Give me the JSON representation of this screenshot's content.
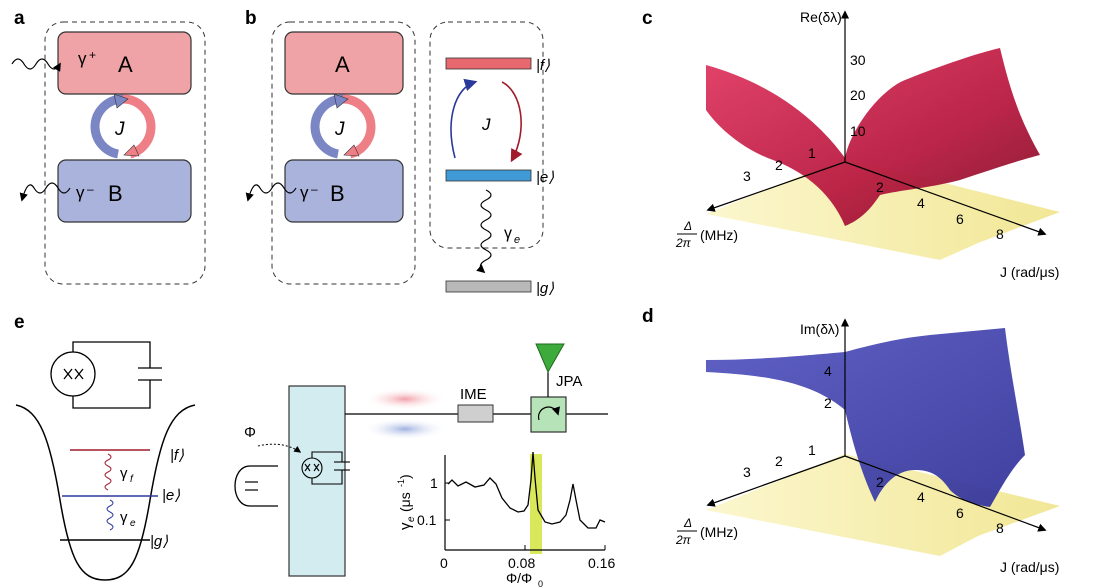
{
  "panels": {
    "a": {
      "letter": "a",
      "gamma_plus": "γ",
      "plus_sign": "+",
      "mode_a": "A",
      "coupling": "J",
      "gamma_minus": "γ",
      "minus_sign": "–",
      "mode_b": "B"
    },
    "b": {
      "letter": "b",
      "mode_a": "A",
      "coupling": "J",
      "gamma_minus": "γ",
      "minus_sign": "–",
      "mode_b": "B",
      "level_f": "|f⟩",
      "level_e": "|e⟩",
      "level_g": "|g⟩",
      "level_coupling": "J",
      "decay": "γ",
      "decay_sub": "e"
    },
    "c": {
      "letter": "c",
      "z_axis_label": "Re(δλ)",
      "z_ticks": [
        "30",
        "20",
        "10"
      ],
      "delta_ticks": [
        "3",
        "2",
        "1"
      ],
      "j_ticks": [
        "2",
        "4",
        "6",
        "8"
      ],
      "delta_num": "Δ",
      "delta_den": "2π",
      "delta_unit": "(MHz)",
      "j_axis_label": "J (rad/μs)"
    },
    "d": {
      "letter": "d",
      "z_axis_label": "Im(δλ)",
      "z_ticks": [
        "4",
        "2"
      ],
      "delta_ticks": [
        "3",
        "2",
        "1"
      ],
      "j_ticks": [
        "2",
        "4",
        "6",
        "8"
      ],
      "delta_num": "Δ",
      "delta_den": "2π",
      "delta_unit": "(MHz)",
      "j_axis_label": "J (rad/μs)"
    },
    "e": {
      "letter": "e",
      "level_f": "|f⟩",
      "level_e": "|e⟩",
      "level_g": "|g⟩",
      "gamma_f": "γ",
      "gamma_f_sub": "f",
      "gamma_e": "γ",
      "gamma_e_sub": "e",
      "flux": "Φ",
      "ime": "IME",
      "jpa": "JPA",
      "inset": {
        "ylabel_main": "γ",
        "ylabel_sub": "e",
        "ylabel_unit": "(μs",
        "ylabel_exp": "-1",
        "ylabel_close": ")",
        "yticks": [
          "1",
          "0.1"
        ],
        "xticks": [
          "0",
          "0.08",
          "0.16"
        ],
        "xlabel": "Φ/Φ",
        "xlabel_sub": "0"
      }
    }
  },
  "colors": {
    "mode_a_fill": "#f0a3a6",
    "mode_b_fill": "#a9b3dc",
    "level_f": "#e8686f",
    "level_e": "#3f9ad6",
    "level_g": "#b8b8b8",
    "arrow_blue": "#2b3a9a",
    "arrow_red": "#a01c2c",
    "surface_re": "#c81f4b",
    "surface_im": "#4a4bb0",
    "surface_yellow": "#f6eca0",
    "jpa_green": "#3cab3c",
    "circulator": "#b7e3b8",
    "chip": "#d3ecef",
    "ime_box": "#cfcfcf",
    "highlight": "#d9e85a"
  }
}
